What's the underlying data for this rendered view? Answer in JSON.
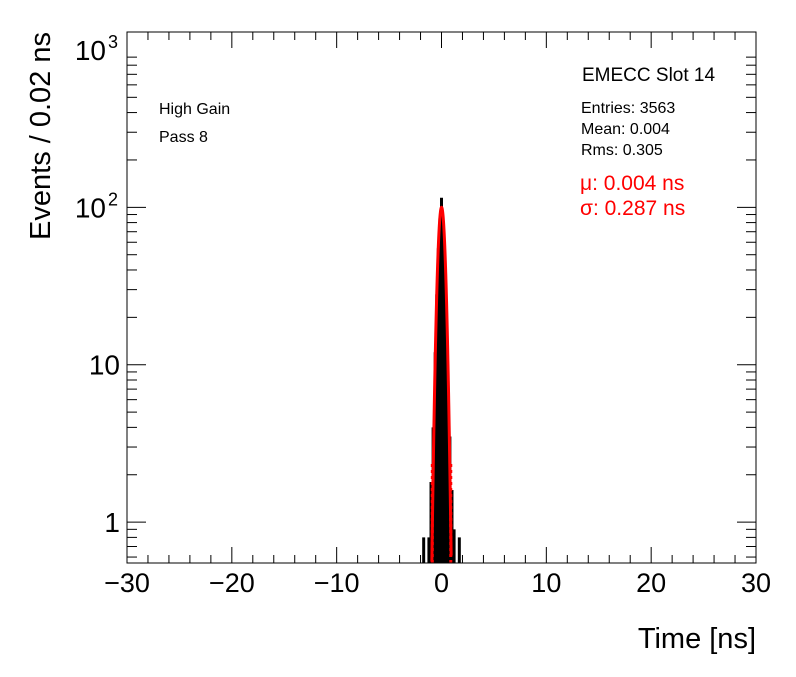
{
  "chart_data": {
    "type": "histogram",
    "title": "EMECC Slot 14",
    "xlabel": "Time [ns]",
    "ylabel": "Events / 0.02 ns",
    "xlim": [
      -30,
      30
    ],
    "ylim": [
      0.55,
      1300
    ],
    "yscale": "log",
    "x_ticks": [
      "−30",
      "−20",
      "−10",
      "0",
      "10",
      "20",
      "30"
    ],
    "x_tick_values": [
      -30,
      -20,
      -10,
      0,
      10,
      20,
      30
    ],
    "y_tick_values": [
      1,
      10,
      100,
      1000
    ],
    "y_ticks": [
      "1",
      "10",
      "10",
      "10"
    ],
    "y_tick_exponents": [
      "",
      "",
      "2",
      "3"
    ],
    "annotations": {
      "gain": "High Gain",
      "pass": "Pass 8"
    },
    "stats": {
      "entries": "Entries: 3563",
      "mean": "Mean: 0.004",
      "rms": "Rms: 0.305"
    },
    "fit": {
      "mu_label": "μ: 0.004 ns",
      "sigma_label": "σ: 0.287 ns",
      "mu": 0.004,
      "sigma": 0.287,
      "peak": 100
    },
    "histogram": {
      "bin_width": 0.02,
      "bins": [
        {
          "x": -1.7,
          "y": 0.8
        },
        {
          "x": -1.2,
          "y": 0.8
        },
        {
          "x": -1.0,
          "y": 1.8
        },
        {
          "x": -0.8,
          "y": 4
        },
        {
          "x": -0.6,
          "y": 12
        },
        {
          "x": -0.45,
          "y": 28
        },
        {
          "x": -0.3,
          "y": 55
        },
        {
          "x": -0.15,
          "y": 85
        },
        {
          "x": 0.0,
          "y": 115
        },
        {
          "x": 0.15,
          "y": 82
        },
        {
          "x": 0.3,
          "y": 52
        },
        {
          "x": 0.45,
          "y": 26
        },
        {
          "x": 0.6,
          "y": 10
        },
        {
          "x": 0.8,
          "y": 3.5
        },
        {
          "x": 1.0,
          "y": 1.6
        },
        {
          "x": 1.2,
          "y": 0.9
        },
        {
          "x": 1.7,
          "y": 0.8
        }
      ]
    },
    "colors": {
      "histogram": "#000000",
      "fit": "#ff0000",
      "axis": "#000000"
    }
  }
}
